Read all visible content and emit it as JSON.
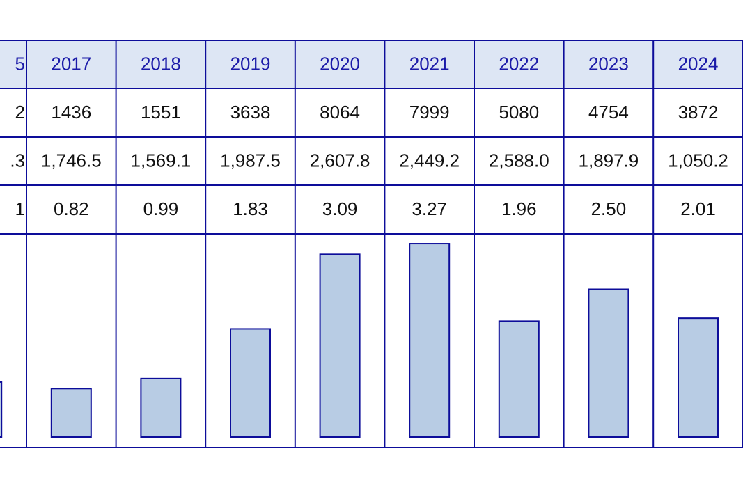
{
  "table": {
    "columns": [
      {
        "header": "5",
        "row1": "2",
        "row2": ".3",
        "row3": "1"
      },
      {
        "header": "2017",
        "row1": "1436",
        "row2": "1,746.5",
        "row3": "0.82"
      },
      {
        "header": "2018",
        "row1": "1551",
        "row2": "1,569.1",
        "row3": "0.99"
      },
      {
        "header": "2019",
        "row1": "3638",
        "row2": "1,987.5",
        "row3": "1.83"
      },
      {
        "header": "2020",
        "row1": "8064",
        "row2": "2,607.8",
        "row3": "3.09"
      },
      {
        "header": "2021",
        "row1": "7999",
        "row2": "2,449.2",
        "row3": "3.27"
      },
      {
        "header": "2022",
        "row1": "5080",
        "row2": "2,588.0",
        "row3": "1.96"
      },
      {
        "header": "2023",
        "row1": "4754",
        "row2": "1,897.9",
        "row3": "2.50"
      },
      {
        "header": "2024",
        "row1": "3872",
        "row2": "1,050.2",
        "row3": "2.01"
      }
    ],
    "bars": {
      "values": [
        0.93,
        0.82,
        0.99,
        1.83,
        3.09,
        3.27,
        1.96,
        2.5,
        2.01
      ],
      "color": "#b8cce4"
    }
  }
}
